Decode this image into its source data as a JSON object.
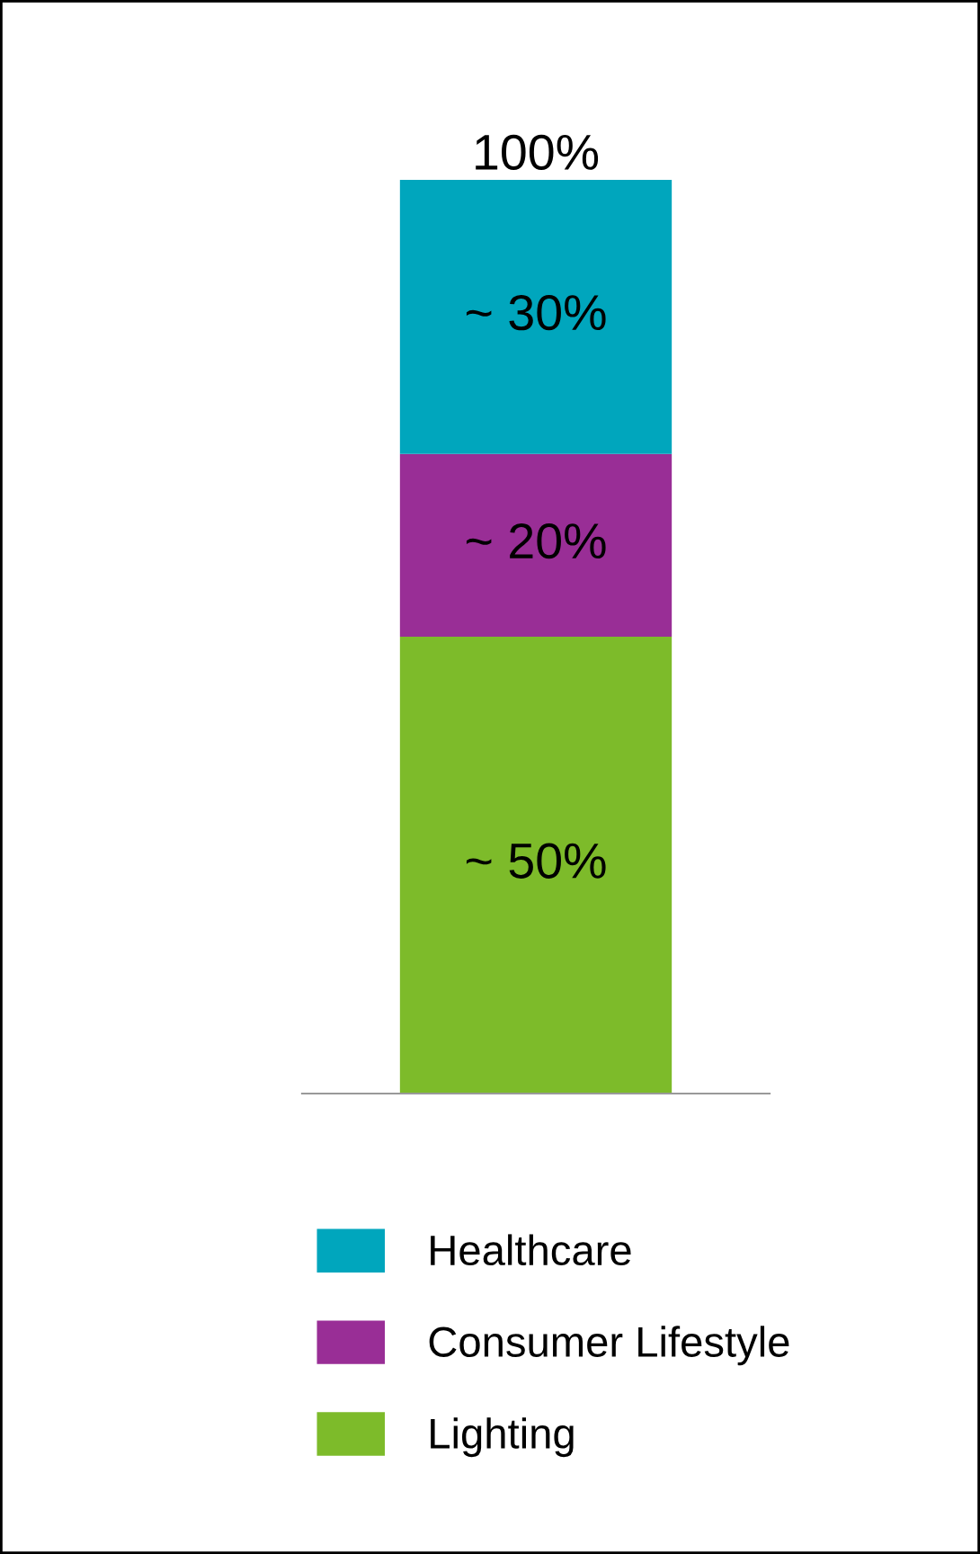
{
  "chart_data": {
    "type": "bar",
    "stacked": true,
    "categories": [
      null
    ],
    "series": [
      {
        "name": "Lighting",
        "color": "#7dbb2a",
        "values": [
          50
        ],
        "value_labels": [
          "~ 50%"
        ]
      },
      {
        "name": "Consumer Lifestyle",
        "color": "#992e96",
        "values": [
          20
        ],
        "value_labels": [
          "~ 20%"
        ]
      },
      {
        "name": "Healthcare",
        "color": "#00a6bd",
        "values": [
          30
        ],
        "value_labels": [
          "~ 30%"
        ]
      }
    ],
    "totals": [
      "100%"
    ],
    "legend": "bottom",
    "grid": false
  }
}
